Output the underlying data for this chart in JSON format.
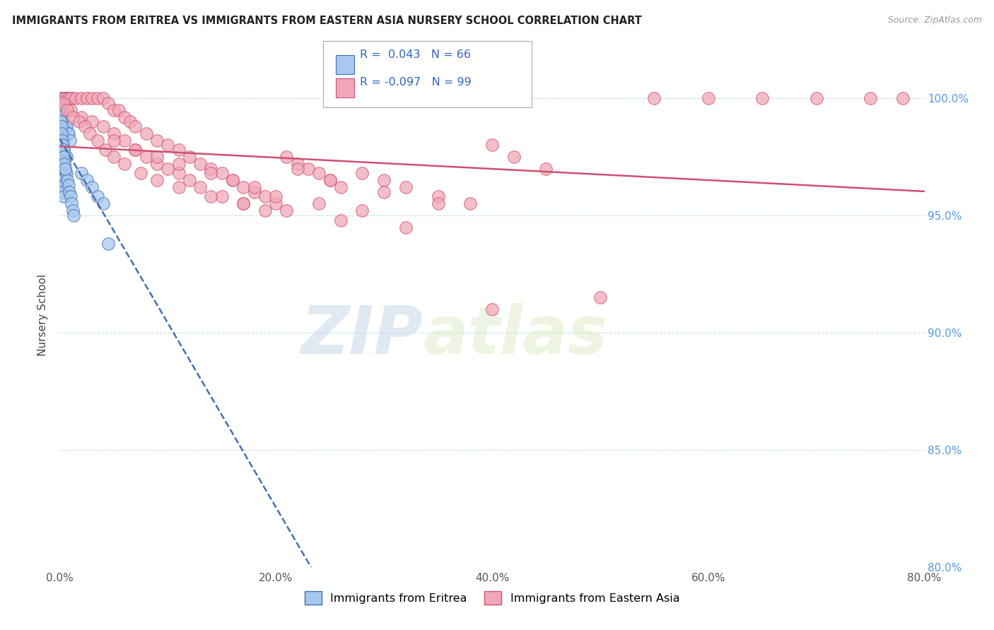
{
  "title": "IMMIGRANTS FROM ERITREA VS IMMIGRANTS FROM EASTERN ASIA NURSERY SCHOOL CORRELATION CHART",
  "source": "Source: ZipAtlas.com",
  "xlabel_bottom": "Immigrants from Eritrea",
  "xlabel_bottom2": "Immigrants from Eastern Asia",
  "ylabel": "Nursery School",
  "xmin": 0.0,
  "xmax": 80.0,
  "ymin": 80.0,
  "ymax": 101.5,
  "yticks": [
    80.0,
    85.0,
    90.0,
    95.0,
    100.0
  ],
  "xticks": [
    0.0,
    20.0,
    40.0,
    60.0,
    80.0
  ],
  "r_eritrea": 0.043,
  "n_eritrea": 66,
  "r_eastern_asia": -0.097,
  "n_eastern_asia": 99,
  "color_eritrea": "#A8C8F0",
  "color_eastern_asia": "#F0A8B8",
  "trend_color_eritrea": "#4070B0",
  "trend_color_eastern_asia": "#D05070",
  "background_color": "#ffffff",
  "watermark_zip": "ZIP",
  "watermark_atlas": "atlas",
  "eritrea_x": [
    0.3,
    0.5,
    0.8,
    1.0,
    0.2,
    0.4,
    0.6,
    0.7,
    0.9,
    1.1,
    0.1,
    0.15,
    0.25,
    0.35,
    0.45,
    0.55,
    0.65,
    0.75,
    0.85,
    0.95,
    0.2,
    0.3,
    0.4,
    0.5,
    0.6,
    0.1,
    0.2,
    0.3,
    0.4,
    0.5,
    0.1,
    0.2,
    0.3,
    0.15,
    0.25,
    0.35,
    0.05,
    0.1,
    0.2,
    0.3,
    0.4,
    0.5,
    0.6,
    0.7,
    0.8,
    0.9,
    1.0,
    1.1,
    1.2,
    1.3,
    0.05,
    0.1,
    0.15,
    0.2,
    0.25,
    0.3,
    0.35,
    0.4,
    0.45,
    0.5,
    2.0,
    2.5,
    3.0,
    3.5,
    4.0,
    4.5
  ],
  "eritrea_y": [
    100.0,
    100.0,
    100.0,
    100.0,
    100.0,
    100.0,
    100.0,
    100.0,
    100.0,
    100.0,
    99.5,
    99.5,
    99.5,
    99.0,
    98.8,
    98.8,
    98.8,
    98.5,
    98.5,
    98.2,
    98.0,
    97.8,
    97.8,
    97.5,
    97.5,
    97.2,
    97.0,
    97.0,
    96.8,
    96.8,
    96.5,
    96.5,
    96.3,
    96.2,
    96.0,
    95.8,
    98.2,
    98.0,
    97.8,
    97.5,
    97.2,
    97.0,
    96.8,
    96.5,
    96.3,
    96.0,
    95.8,
    95.5,
    95.2,
    95.0,
    99.2,
    99.0,
    98.8,
    98.5,
    98.2,
    98.0,
    97.8,
    97.5,
    97.2,
    97.0,
    96.8,
    96.5,
    96.2,
    95.8,
    95.5,
    93.8
  ],
  "eastern_asia_x": [
    0.2,
    0.5,
    0.8,
    1.0,
    1.5,
    2.0,
    2.5,
    3.0,
    3.5,
    4.0,
    4.5,
    5.0,
    5.5,
    6.0,
    6.5,
    7.0,
    8.0,
    9.0,
    10.0,
    11.0,
    12.0,
    13.0,
    14.0,
    15.0,
    16.0,
    17.0,
    18.0,
    19.0,
    20.0,
    21.0,
    22.0,
    23.0,
    24.0,
    25.0,
    26.0,
    28.0,
    30.0,
    32.0,
    35.0,
    38.0,
    40.0,
    42.0,
    45.0,
    50.0,
    55.0,
    60.0,
    65.0,
    70.0,
    75.0,
    78.0,
    1.0,
    2.0,
    3.0,
    4.0,
    5.0,
    6.0,
    7.0,
    8.0,
    9.0,
    10.0,
    11.0,
    12.0,
    13.0,
    15.0,
    17.0,
    19.0,
    22.0,
    25.0,
    30.0,
    35.0,
    5.0,
    7.0,
    9.0,
    11.0,
    14.0,
    16.0,
    18.0,
    20.0,
    24.0,
    28.0,
    0.3,
    0.7,
    1.2,
    1.8,
    2.3,
    2.8,
    3.5,
    4.2,
    5.0,
    6.0,
    7.5,
    9.0,
    11.0,
    14.0,
    17.0,
    21.0,
    26.0,
    32.0,
    40.0
  ],
  "eastern_asia_y": [
    100.0,
    100.0,
    100.0,
    100.0,
    100.0,
    100.0,
    100.0,
    100.0,
    100.0,
    100.0,
    99.8,
    99.5,
    99.5,
    99.2,
    99.0,
    98.8,
    98.5,
    98.2,
    98.0,
    97.8,
    97.5,
    97.2,
    97.0,
    96.8,
    96.5,
    96.2,
    96.0,
    95.8,
    95.5,
    97.5,
    97.2,
    97.0,
    96.8,
    96.5,
    96.2,
    96.8,
    96.5,
    96.2,
    95.8,
    95.5,
    98.0,
    97.5,
    97.0,
    91.5,
    100.0,
    100.0,
    100.0,
    100.0,
    100.0,
    100.0,
    99.5,
    99.2,
    99.0,
    98.8,
    98.5,
    98.2,
    97.8,
    97.5,
    97.2,
    97.0,
    96.8,
    96.5,
    96.2,
    95.8,
    95.5,
    95.2,
    97.0,
    96.5,
    96.0,
    95.5,
    98.2,
    97.8,
    97.5,
    97.2,
    96.8,
    96.5,
    96.2,
    95.8,
    95.5,
    95.2,
    99.8,
    99.5,
    99.2,
    99.0,
    98.8,
    98.5,
    98.2,
    97.8,
    97.5,
    97.2,
    96.8,
    96.5,
    96.2,
    95.8,
    95.5,
    95.2,
    94.8,
    94.5,
    91.0
  ]
}
